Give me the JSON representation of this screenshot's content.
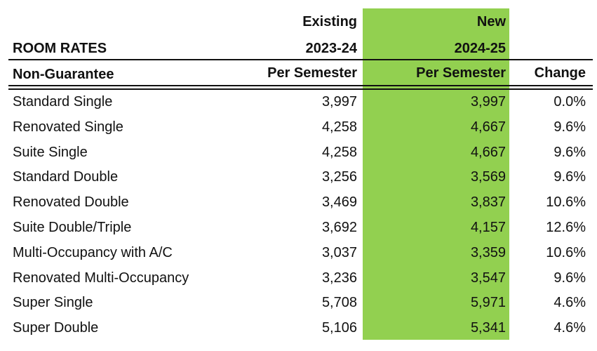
{
  "header": {
    "title": "ROOM RATES",
    "subtitle": "Non-Guarantee",
    "existing_line1": "Existing",
    "existing_line2": "2023-24",
    "existing_line3": "Per Semester",
    "new_line1": "New",
    "new_line2": "2024-25",
    "new_line3": "Per Semester",
    "change_label": "Change"
  },
  "highlight_color": "#92d050",
  "rows": [
    {
      "name": "Standard Single",
      "existing": "3,997",
      "new": "3,997",
      "change": "0.0%"
    },
    {
      "name": "Renovated Single",
      "existing": "4,258",
      "new": "4,667",
      "change": "9.6%"
    },
    {
      "name": "Suite Single",
      "existing": "4,258",
      "new": "4,667",
      "change": "9.6%"
    },
    {
      "name": "Standard Double",
      "existing": "3,256",
      "new": "3,569",
      "change": "9.6%"
    },
    {
      "name": "Renovated Double",
      "existing": "3,469",
      "new": "3,837",
      "change": "10.6%"
    },
    {
      "name": "Suite Double/Triple",
      "existing": "3,692",
      "new": "4,157",
      "change": "12.6%"
    },
    {
      "name": "Multi-Occupancy with A/C",
      "existing": "3,037",
      "new": "3,359",
      "change": "10.6%"
    },
    {
      "name": "Renovated Multi-Occupancy",
      "existing": "3,236",
      "new": "3,547",
      "change": "9.6%"
    },
    {
      "name": "Super Single",
      "existing": "5,708",
      "new": "5,971",
      "change": "4.6%"
    },
    {
      "name": "Super Double",
      "existing": "5,106",
      "new": "5,341",
      "change": "4.6%"
    }
  ]
}
